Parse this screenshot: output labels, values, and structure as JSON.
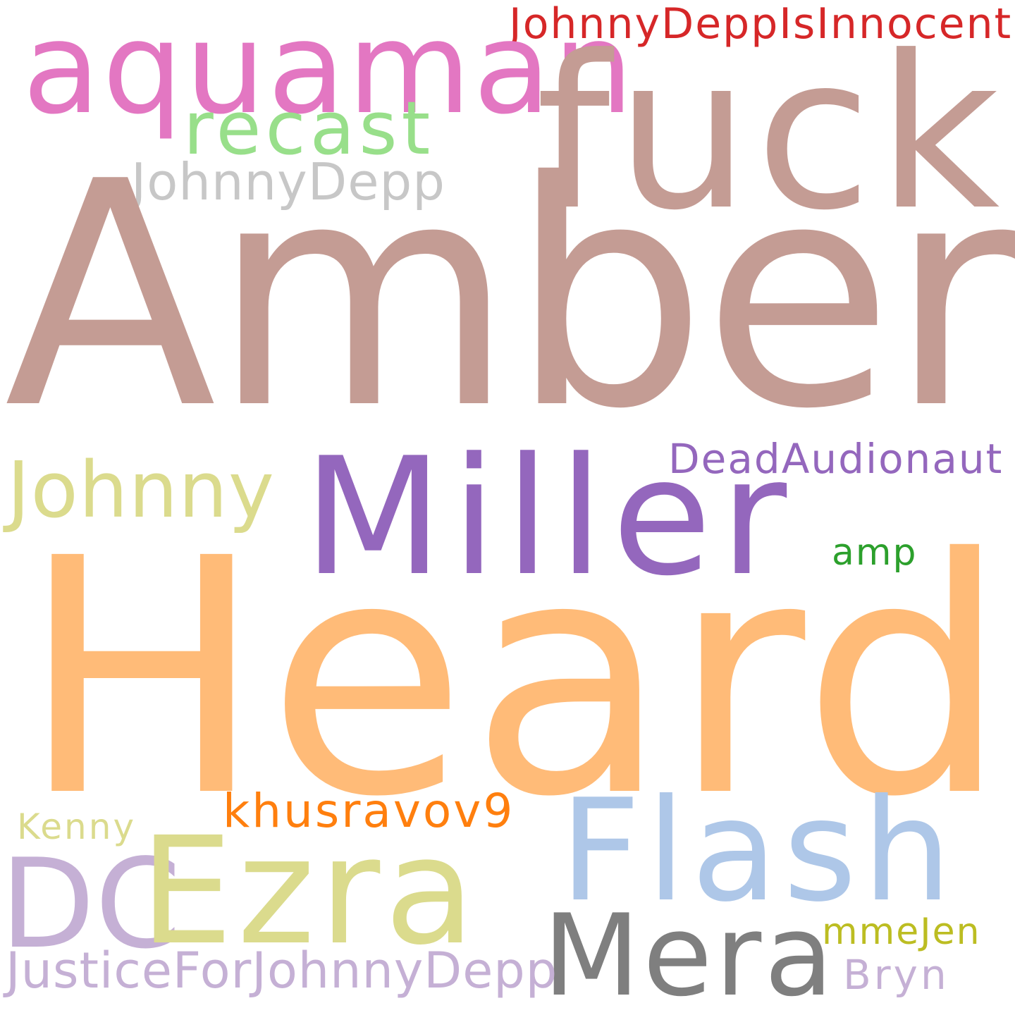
{
  "words": [
    {
      "id": "johnny-depp-is-innocent",
      "text": "JohnnyDeppIsInnocent",
      "color": "#d62728"
    },
    {
      "id": "aquaman",
      "text": "aquaman",
      "color": "#e377c2"
    },
    {
      "id": "fuck",
      "text": "fuck",
      "color": "#c49c94"
    },
    {
      "id": "recast",
      "text": "recast",
      "color": "#98df8a"
    },
    {
      "id": "johnnydepp",
      "text": "JohnnyDepp",
      "color": "#c7c7c7"
    },
    {
      "id": "amber",
      "text": "Amber",
      "color": "#c49c94"
    },
    {
      "id": "johnny",
      "text": "Johnny",
      "color": "#dbdb8d"
    },
    {
      "id": "miller",
      "text": "Miller",
      "color": "#9467bd"
    },
    {
      "id": "deadaudionaut",
      "text": "DeadAudionaut",
      "color": "#9467bd"
    },
    {
      "id": "amp",
      "text": "amp",
      "color": "#2ca02c"
    },
    {
      "id": "heard",
      "text": "Heard",
      "color": "#ffbb78"
    },
    {
      "id": "khusravov9",
      "text": "khusravov9",
      "color": "#ff7f0e"
    },
    {
      "id": "kenny",
      "text": "Kenny",
      "color": "#dbdb8d"
    },
    {
      "id": "flash",
      "text": "Flash",
      "color": "#aec7e8"
    },
    {
      "id": "dc",
      "text": "DC",
      "color": "#c5b0d5"
    },
    {
      "id": "ezra",
      "text": "Ezra",
      "color": "#dbdb8d"
    },
    {
      "id": "mera",
      "text": "Mera",
      "color": "#7f7f7f"
    },
    {
      "id": "mmejen",
      "text": "mmeJen",
      "color": "#bcbd22"
    },
    {
      "id": "justiceforjohnnydepp",
      "text": "JusticeForJohnnyDepp",
      "color": "#c5b0d5"
    },
    {
      "id": "bryn",
      "text": "Bryn",
      "color": "#c5b0d5"
    }
  ]
}
